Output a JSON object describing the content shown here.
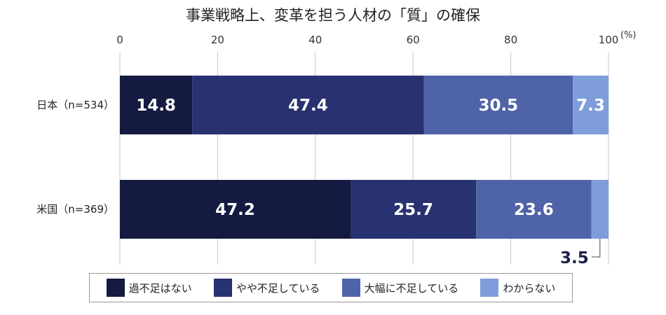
{
  "chart_data": {
    "type": "bar",
    "orientation": "horizontal",
    "stacked": true,
    "title": "事業戦略上、変革を担う人材の「質」の確保",
    "categories": [
      "日本（n=534）",
      "米国（n=369）"
    ],
    "series": [
      {
        "name": "過不足はない",
        "values": [
          14.8,
          47.2
        ],
        "color": "#141a40"
      },
      {
        "name": "やや不足している",
        "values": [
          47.4,
          25.7
        ],
        "color": "#283270"
      },
      {
        "name": "大幅に不足している",
        "values": [
          30.5,
          23.6
        ],
        "color": "#4f63a8"
      },
      {
        "name": "わからない",
        "values": [
          7.3,
          3.5
        ],
        "color": "#7f9ddb"
      }
    ],
    "xlim": [
      0,
      100
    ],
    "xticks": [
      "0",
      "20",
      "40",
      "60",
      "80",
      "100"
    ],
    "xunit": "(%)",
    "legend_position": "bottom"
  }
}
